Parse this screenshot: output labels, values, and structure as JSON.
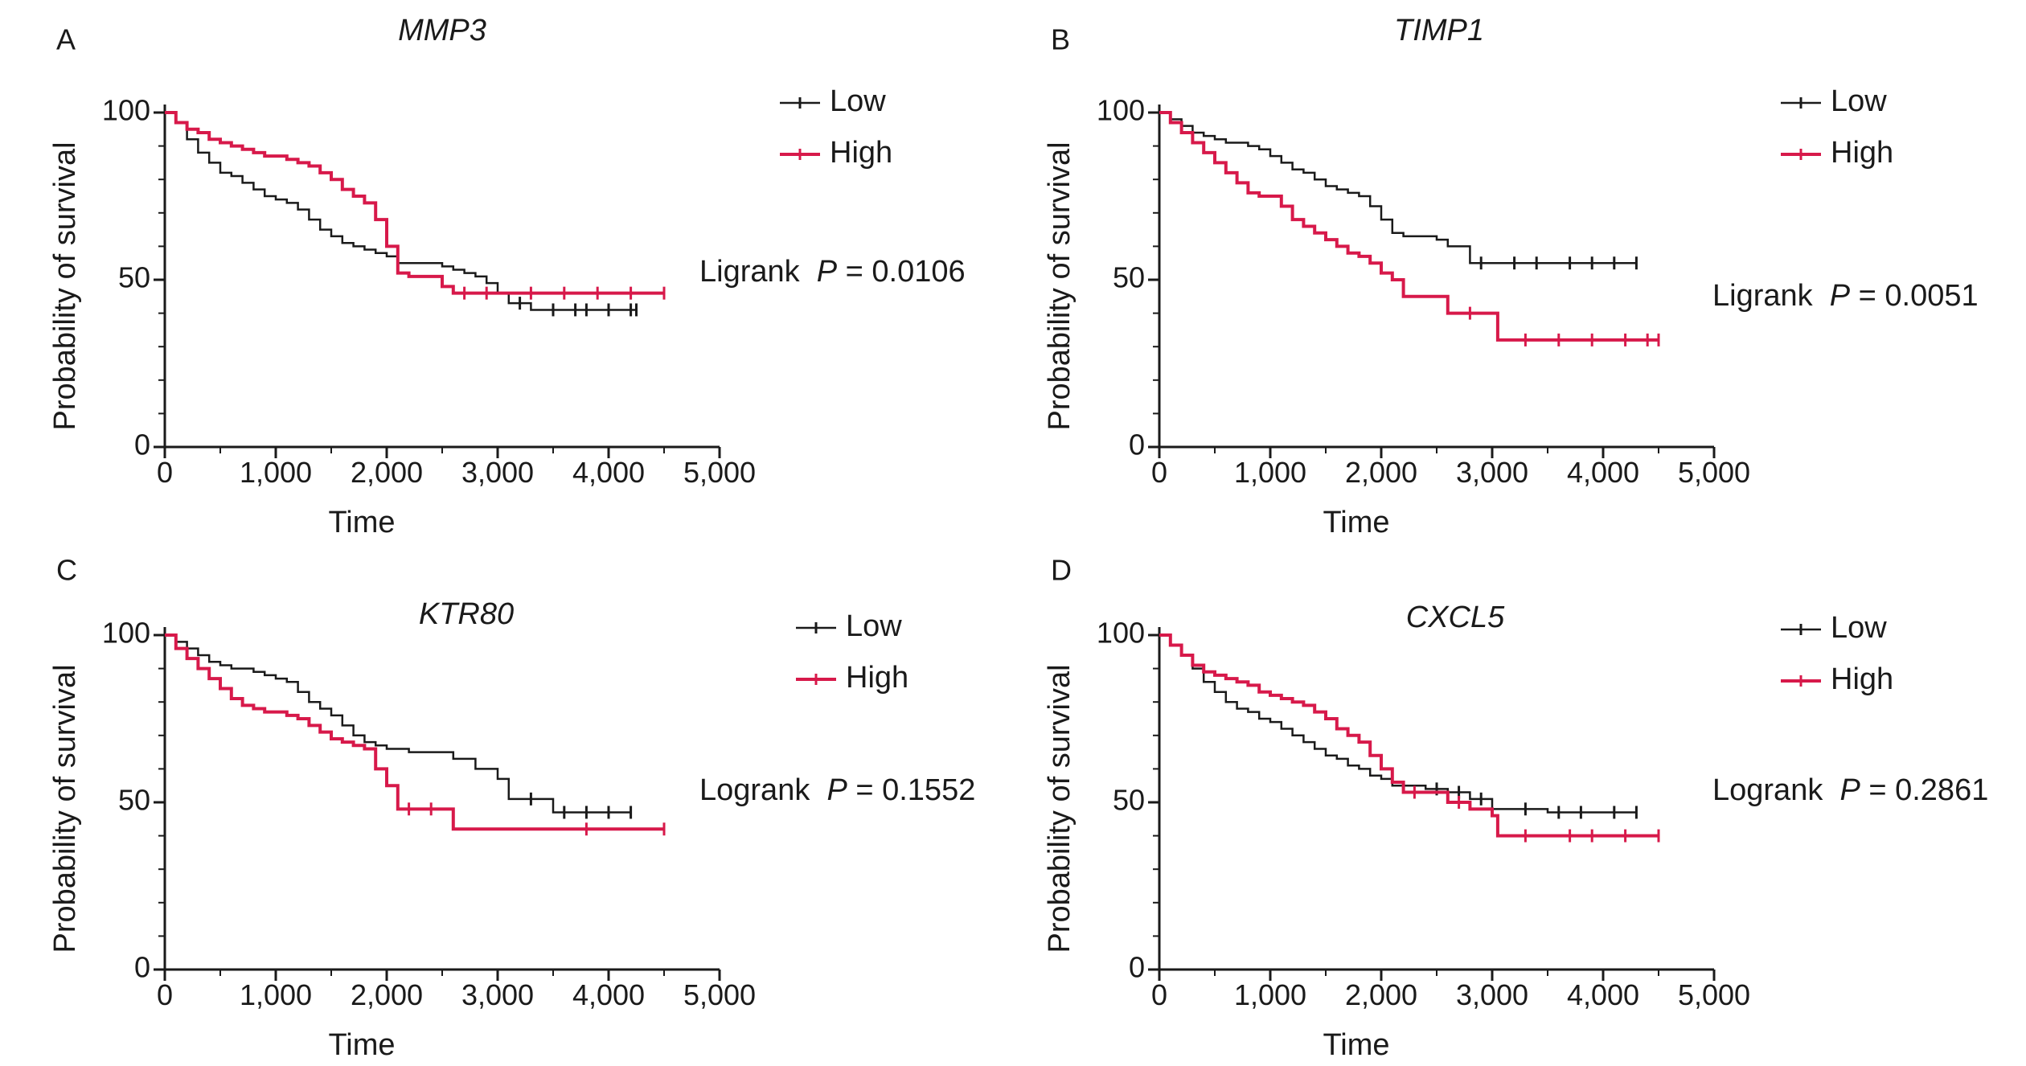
{
  "colors": {
    "low": "#1a1a1a",
    "high": "#d7194a"
  },
  "chart_data": [
    {
      "type": "line",
      "panel_letter": "A",
      "title": "MMP3",
      "xlabel": "Time",
      "ylabel": "Probability of survival",
      "xlim": [
        0,
        5000
      ],
      "ylim": [
        0,
        100
      ],
      "xticks": [
        0,
        1000,
        2000,
        3000,
        4000,
        5000
      ],
      "xtick_labels": [
        "0",
        "1,000",
        "2,000",
        "3,000",
        "4,000",
        "5,000"
      ],
      "yticks": [
        0,
        50,
        100
      ],
      "ytick_labels": [
        "0",
        "50",
        "100"
      ],
      "legend": {
        "position": "top-right",
        "entries": [
          "Low",
          "High"
        ]
      },
      "annotation": {
        "prefix": "Ligrank ",
        "p_symbol": "P",
        "value_text": " = 0.0106"
      },
      "series": [
        {
          "name": "Low",
          "color": "#1a1a1a",
          "x": [
            0,
            100,
            200,
            300,
            400,
            500,
            600,
            700,
            800,
            900,
            1000,
            1100,
            1200,
            1300,
            1400,
            1500,
            1600,
            1700,
            1800,
            1900,
            2000,
            2100,
            2200,
            2400,
            2500,
            2600,
            2700,
            2800,
            2900,
            3000,
            3100,
            3300,
            3500,
            3800,
            4000,
            4250
          ],
          "y": [
            100,
            97,
            92,
            88,
            85,
            82,
            81,
            79,
            77,
            75,
            74,
            73,
            71,
            68,
            65,
            63,
            61,
            60,
            59,
            58,
            57,
            55,
            55,
            55,
            54,
            53,
            52,
            51,
            49,
            46,
            43,
            41,
            41,
            41,
            41,
            41
          ],
          "censor_x": [
            3200,
            3500,
            3700,
            3800,
            4000,
            4200,
            4250
          ]
        },
        {
          "name": "High",
          "color": "#d7194a",
          "x": [
            0,
            100,
            200,
            300,
            400,
            500,
            600,
            700,
            800,
            900,
            1000,
            1100,
            1200,
            1300,
            1400,
            1500,
            1600,
            1700,
            1800,
            1900,
            2000,
            2100,
            2200,
            2400,
            2500,
            2600,
            3000,
            3500,
            4000,
            4500
          ],
          "y": [
            100,
            97,
            95,
            94,
            92,
            91,
            90,
            89,
            88,
            87,
            87,
            86,
            85,
            84,
            82,
            80,
            77,
            75,
            73,
            68,
            60,
            52,
            51,
            51,
            48,
            46,
            46,
            46,
            46,
            46
          ],
          "censor_x": [
            2700,
            2900,
            3300,
            3600,
            3900,
            4200,
            4500
          ]
        }
      ]
    },
    {
      "type": "line",
      "panel_letter": "B",
      "title": "TIMP1",
      "xlabel": "Time",
      "ylabel": "Probability of survival",
      "xlim": [
        0,
        5000
      ],
      "ylim": [
        0,
        100
      ],
      "xticks": [
        0,
        1000,
        2000,
        3000,
        4000,
        5000
      ],
      "xtick_labels": [
        "0",
        "1,000",
        "2,000",
        "3,000",
        "4,000",
        "5,000"
      ],
      "yticks": [
        0,
        50,
        100
      ],
      "ytick_labels": [
        "0",
        "50",
        "100"
      ],
      "legend": {
        "position": "top-right",
        "entries": [
          "Low",
          "High"
        ]
      },
      "annotation": {
        "prefix": "Ligrank ",
        "p_symbol": "P",
        "value_text": " = 0.0051"
      },
      "series": [
        {
          "name": "Low",
          "color": "#1a1a1a",
          "x": [
            0,
            100,
            200,
            300,
            400,
            500,
            600,
            700,
            800,
            900,
            1000,
            1100,
            1200,
            1300,
            1400,
            1500,
            1600,
            1700,
            1800,
            1900,
            2000,
            2100,
            2200,
            2400,
            2500,
            2600,
            2800,
            3000,
            3500,
            4000,
            4300
          ],
          "y": [
            100,
            98,
            96,
            94,
            93,
            92,
            91,
            91,
            90,
            89,
            87,
            85,
            83,
            82,
            80,
            78,
            77,
            76,
            75,
            72,
            68,
            64,
            63,
            63,
            62,
            60,
            55,
            55,
            55,
            55,
            55
          ],
          "censor_x": [
            2900,
            3200,
            3400,
            3700,
            3900,
            4100,
            4300
          ]
        },
        {
          "name": "High",
          "color": "#d7194a",
          "x": [
            0,
            100,
            200,
            300,
            400,
            500,
            600,
            700,
            800,
            900,
            1000,
            1100,
            1200,
            1300,
            1400,
            1500,
            1600,
            1700,
            1800,
            1900,
            2000,
            2100,
            2200,
            2400,
            2600,
            2800,
            3000,
            3050,
            3500,
            4000,
            4500
          ],
          "y": [
            100,
            97,
            94,
            91,
            88,
            85,
            82,
            79,
            76,
            75,
            75,
            72,
            68,
            66,
            64,
            62,
            60,
            58,
            57,
            55,
            52,
            50,
            45,
            45,
            40,
            40,
            40,
            32,
            32,
            32,
            32
          ],
          "censor_x": [
            2800,
            3300,
            3600,
            3900,
            4200,
            4400,
            4500
          ]
        }
      ]
    },
    {
      "type": "line",
      "panel_letter": "C",
      "title": "KTR80",
      "xlabel": "Time",
      "ylabel": "Probability of survival",
      "xlim": [
        0,
        5000
      ],
      "ylim": [
        0,
        100
      ],
      "xticks": [
        0,
        1000,
        2000,
        3000,
        4000,
        5000
      ],
      "xtick_labels": [
        "0",
        "1,000",
        "2,000",
        "3,000",
        "4,000",
        "5,000"
      ],
      "yticks": [
        0,
        50,
        100
      ],
      "ytick_labels": [
        "0",
        "50",
        "100"
      ],
      "legend": {
        "position": "top-right",
        "entries": [
          "Low",
          "High"
        ]
      },
      "annotation": {
        "prefix": "Logrank ",
        "p_symbol": "P",
        "value_text": " = 0.1552"
      },
      "series": [
        {
          "name": "Low",
          "color": "#1a1a1a",
          "x": [
            0,
            100,
            200,
            300,
            400,
            500,
            600,
            700,
            800,
            900,
            1000,
            1100,
            1200,
            1300,
            1400,
            1500,
            1600,
            1700,
            1800,
            1900,
            2000,
            2200,
            2400,
            2600,
            2800,
            3000,
            3100,
            3500,
            4000,
            4200
          ],
          "y": [
            100,
            98,
            96,
            94,
            92,
            91,
            90,
            90,
            89,
            88,
            87,
            86,
            83,
            80,
            78,
            76,
            73,
            70,
            68,
            67,
            66,
            65,
            65,
            63,
            60,
            57,
            51,
            47,
            47,
            47
          ],
          "censor_x": [
            3300,
            3600,
            3800,
            4000,
            4200
          ]
        },
        {
          "name": "High",
          "color": "#d7194a",
          "x": [
            0,
            100,
            200,
            300,
            400,
            500,
            600,
            700,
            800,
            900,
            1000,
            1100,
            1200,
            1300,
            1400,
            1500,
            1600,
            1700,
            1800,
            1900,
            2000,
            2100,
            2500,
            2600,
            3000,
            3500,
            4000,
            4500
          ],
          "y": [
            100,
            96,
            93,
            90,
            87,
            84,
            81,
            79,
            78,
            77,
            77,
            76,
            75,
            73,
            71,
            69,
            68,
            67,
            66,
            60,
            55,
            48,
            48,
            42,
            42,
            42,
            42,
            42
          ],
          "censor_x": [
            2200,
            2400,
            3800,
            4500
          ]
        }
      ]
    },
    {
      "type": "line",
      "panel_letter": "D",
      "title": "CXCL5",
      "xlabel": "Time",
      "ylabel": "Probability of survival",
      "xlim": [
        0,
        5000
      ],
      "ylim": [
        0,
        100
      ],
      "xticks": [
        0,
        1000,
        2000,
        3000,
        4000,
        5000
      ],
      "xtick_labels": [
        "0",
        "1,000",
        "2,000",
        "3,000",
        "4,000",
        "5,000"
      ],
      "yticks": [
        0,
        50,
        100
      ],
      "ytick_labels": [
        "0",
        "50",
        "100"
      ],
      "legend": {
        "position": "top-right",
        "entries": [
          "Low",
          "High"
        ]
      },
      "annotation": {
        "prefix": "Logrank ",
        "p_symbol": "P",
        "value_text": " = 0.2861"
      },
      "series": [
        {
          "name": "Low",
          "color": "#1a1a1a",
          "x": [
            0,
            100,
            200,
            300,
            400,
            500,
            600,
            700,
            800,
            900,
            1000,
            1100,
            1200,
            1300,
            1400,
            1500,
            1600,
            1700,
            1800,
            1900,
            2000,
            2100,
            2200,
            2400,
            2600,
            2800,
            3000,
            3500,
            4000,
            4300
          ],
          "y": [
            100,
            97,
            94,
            90,
            86,
            83,
            80,
            78,
            77,
            75,
            74,
            72,
            70,
            68,
            66,
            64,
            63,
            61,
            60,
            58,
            57,
            55,
            55,
            54,
            53,
            51,
            48,
            47,
            47,
            47
          ],
          "censor_x": [
            2500,
            2700,
            2900,
            3300,
            3600,
            3800,
            4100,
            4300
          ]
        },
        {
          "name": "High",
          "color": "#d7194a",
          "x": [
            0,
            100,
            200,
            300,
            400,
            500,
            600,
            700,
            800,
            900,
            1000,
            1100,
            1200,
            1300,
            1400,
            1500,
            1600,
            1700,
            1800,
            1900,
            2000,
            2100,
            2200,
            2400,
            2600,
            2800,
            3000,
            3050,
            3500,
            4000,
            4500
          ],
          "y": [
            100,
            97,
            94,
            91,
            89,
            88,
            87,
            86,
            85,
            83,
            82,
            81,
            80,
            79,
            77,
            75,
            72,
            70,
            68,
            64,
            60,
            56,
            53,
            53,
            50,
            48,
            46,
            40,
            40,
            40,
            40
          ],
          "censor_x": [
            2300,
            2700,
            3300,
            3700,
            3900,
            4200,
            4500
          ]
        }
      ]
    }
  ]
}
